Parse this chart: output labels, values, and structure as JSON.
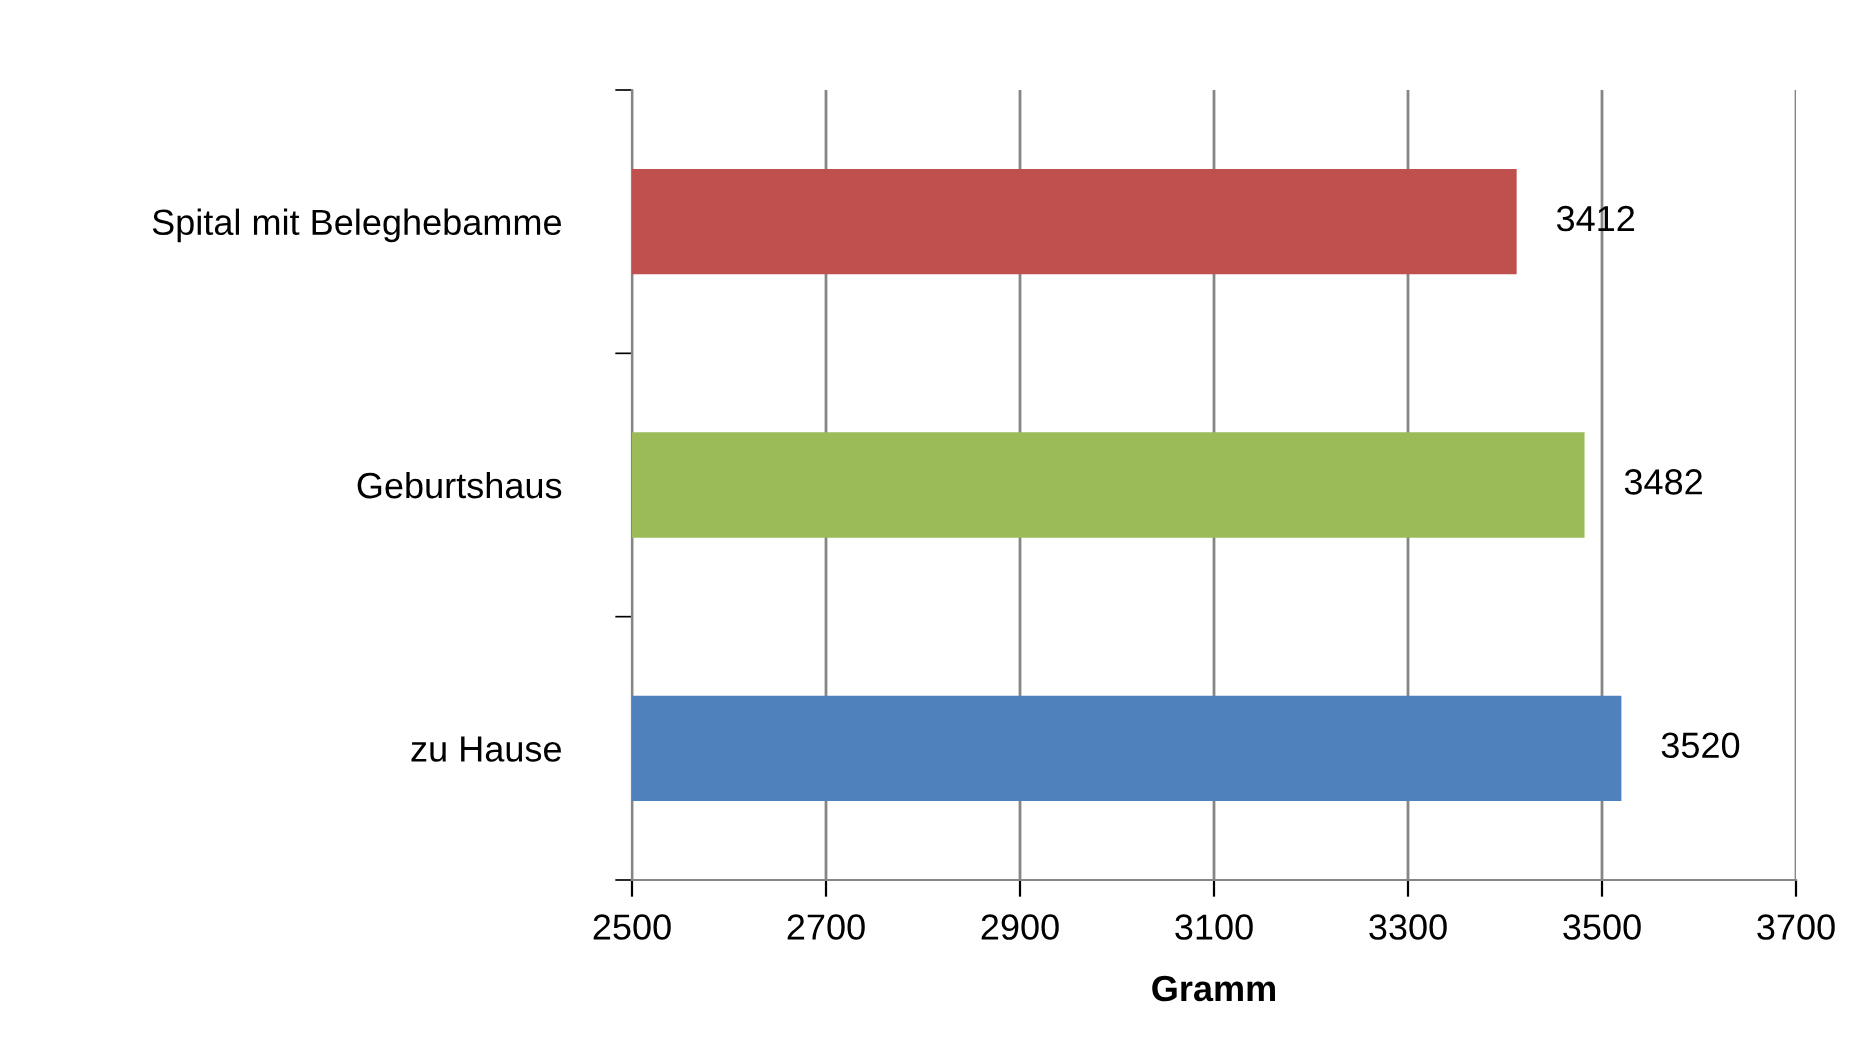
{
  "chart_data": {
    "type": "bar",
    "orientation": "horizontal",
    "categories": [
      "Spital mit Beleghebamme",
      "Geburtshaus",
      "zu Hause"
    ],
    "values": [
      3412,
      3482,
      3520
    ],
    "colors": [
      "#c0504d",
      "#9bbb59",
      "#4f81bd"
    ],
    "xlabel": "Gramm",
    "xlim": [
      2500,
      3700
    ],
    "xticks": [
      2500,
      2700,
      2900,
      3100,
      3300,
      3500,
      3700
    ],
    "grid": "x",
    "data_labels": true,
    "legend": false
  }
}
